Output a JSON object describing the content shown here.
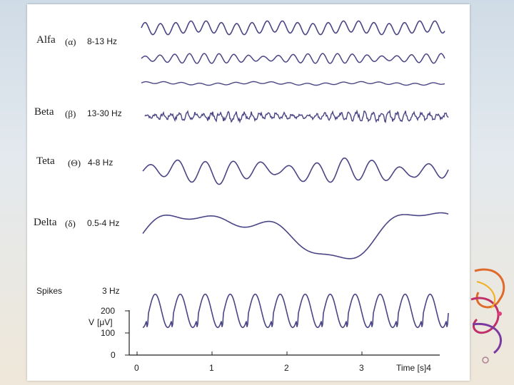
{
  "bands": [
    {
      "name": "Alfa",
      "symbol": "(α)",
      "freq": "8-13 Hz"
    },
    {
      "name": "Beta",
      "symbol": "(β)",
      "freq": "13-30 Hz"
    },
    {
      "name": "Teta",
      "symbol": "(Θ)",
      "freq": "4-8 Hz"
    },
    {
      "name": "Delta",
      "symbol": "(δ)",
      "freq": "0.5-4 Hz"
    },
    {
      "name": "Spikes",
      "symbol": "",
      "freq": "3 Hz"
    }
  ],
  "axes": {
    "y_label_prefix": "V",
    "y_label_unit": "[μV]",
    "y_ticks": [
      "200",
      "100",
      "0"
    ],
    "x_ticks": [
      "0",
      "1",
      "2",
      "3"
    ],
    "x_label": "Time [s]4"
  },
  "colors": {
    "wave": "#4a4585",
    "text": "#1a1a1a"
  }
}
